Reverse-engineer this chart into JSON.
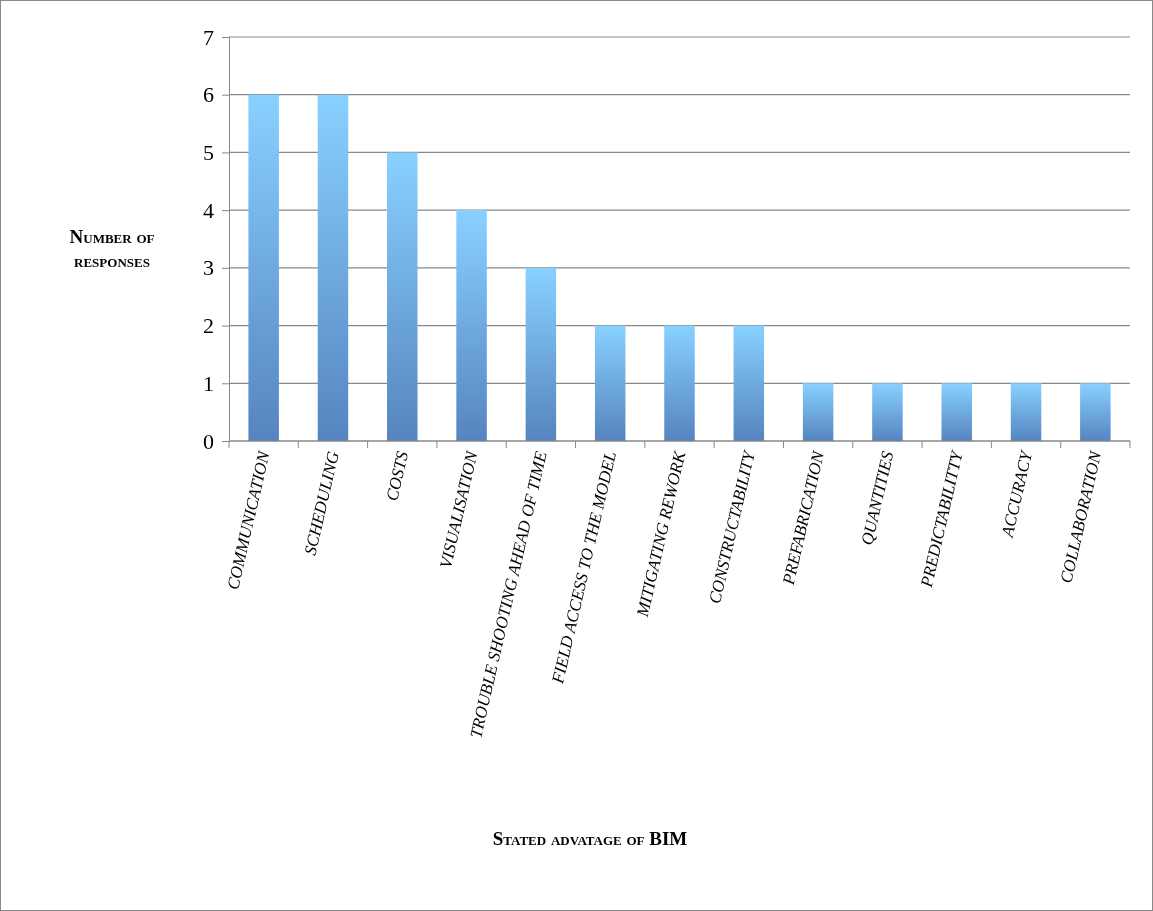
{
  "chart_data": {
    "type": "bar",
    "xlabel": "Stated advatage of BIM",
    "ylabel": "Number of responses",
    "categories": [
      "COMMUNICATION",
      "SCHEDULING",
      "COSTS",
      "VISUALISATION",
      "TROUBLE SHOOTING AHEAD OF TIME",
      "FIELD ACCESS TO THE MODEL",
      "MITIGATING REWORK",
      "CONSTRUCTABILITY",
      "PREFABRICATION",
      "QUANTITIES",
      "PREDICTABILITTY",
      "ACCURACY",
      "COLLABORATION"
    ],
    "values": [
      6,
      6,
      5,
      4,
      3,
      2,
      2,
      2,
      1,
      1,
      1,
      1,
      1
    ],
    "color": "#6aa3ec",
    "ylim": [
      0,
      7
    ],
    "yticks": [
      0,
      1,
      2,
      3,
      4,
      5,
      6,
      7
    ],
    "grid": "y"
  }
}
